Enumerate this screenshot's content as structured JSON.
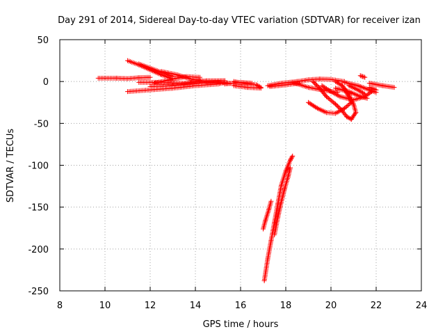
{
  "chart_data": {
    "type": "scatter",
    "title": "Day 291 of 2014, Sidereal Day-to-day VTEC variation (SDTVAR) for receiver izan",
    "xlabel": "GPS time / hours",
    "ylabel": "SDTVAR / TECUs",
    "xlim": [
      8,
      24
    ],
    "ylim": [
      -250,
      50
    ],
    "xticks": [
      "8",
      "10",
      "12",
      "14",
      "16",
      "18",
      "20",
      "22",
      "24"
    ],
    "yticks": [
      "50",
      "0",
      "-50",
      "-100",
      "-150",
      "-200",
      "-250"
    ],
    "grid": true,
    "marker": "+",
    "series": [
      {
        "name": "SDTVAR",
        "color": "#ff0000",
        "segments": [
          [
            [
              9.7,
              4
            ],
            [
              10.5,
              4
            ],
            [
              11.0,
              3.5
            ],
            [
              11.5,
              4.5
            ],
            [
              12.0,
              5
            ]
          ],
          [
            [
              11.0,
              -12
            ],
            [
              12.0,
              -10
            ],
            [
              13.0,
              -8
            ],
            [
              14.0,
              -5
            ],
            [
              15.0,
              -3
            ],
            [
              15.3,
              -1
            ]
          ],
          [
            [
              11.0,
              25
            ],
            [
              11.5,
              20
            ],
            [
              12.0,
              14
            ],
            [
              12.5,
              8
            ],
            [
              13.0,
              3
            ]
          ],
          [
            [
              11.5,
              21
            ],
            [
              12.0,
              16
            ],
            [
              12.5,
              11
            ],
            [
              13.0,
              6
            ]
          ],
          [
            [
              12.2,
              -2
            ],
            [
              13.0,
              3
            ],
            [
              13.6,
              6
            ],
            [
              14.2,
              5
            ]
          ],
          [
            [
              11.5,
              -1
            ],
            [
              12.5,
              -1
            ],
            [
              13.5,
              -2
            ],
            [
              14.5,
              1
            ],
            [
              15.3,
              1
            ]
          ],
          [
            [
              12.0,
              -6
            ],
            [
              13.0,
              -5
            ],
            [
              14.0,
              -2
            ],
            [
              15.0,
              -1
            ],
            [
              15.5,
              -2
            ]
          ],
          [
            [
              12.5,
              12
            ],
            [
              13.2,
              8
            ],
            [
              13.8,
              3
            ],
            [
              14.5,
              0
            ],
            [
              15.3,
              1
            ]
          ],
          [
            [
              15.3,
              -3
            ],
            [
              16.0,
              -1
            ],
            [
              16.5,
              -2
            ]
          ],
          [
            [
              15.7,
              0
            ],
            [
              16.3,
              -3
            ],
            [
              16.7,
              -4
            ],
            [
              16.9,
              -7
            ]
          ],
          [
            [
              15.7,
              -5
            ],
            [
              16.3,
              -7
            ],
            [
              16.9,
              -8
            ]
          ],
          [
            [
              17.2,
              -5
            ],
            [
              17.8,
              -2
            ],
            [
              18.5,
              0
            ],
            [
              19.0,
              2
            ],
            [
              19.5,
              3
            ],
            [
              20.0,
              2.5
            ],
            [
              20.6,
              0
            ]
          ],
          [
            [
              17.3,
              -6
            ],
            [
              18.0,
              -4
            ],
            [
              18.6,
              -2
            ]
          ],
          [
            [
              18.3,
              -1
            ],
            [
              19.0,
              -7
            ],
            [
              19.6,
              -10
            ],
            [
              20.3,
              -13
            ]
          ],
          [
            [
              19.2,
              0
            ],
            [
              19.5,
              -8
            ],
            [
              19.8,
              -18
            ],
            [
              20.2,
              -27
            ],
            [
              20.5,
              -35
            ],
            [
              20.7,
              -42
            ],
            [
              20.9,
              -45
            ],
            [
              21.1,
              -37
            ],
            [
              21.0,
              -27
            ],
            [
              20.8,
              -18
            ],
            [
              20.6,
              -10
            ]
          ],
          [
            [
              19.0,
              -25
            ],
            [
              19.4,
              -32
            ],
            [
              19.8,
              -37
            ],
            [
              20.2,
              -38
            ],
            [
              20.6,
              -32
            ],
            [
              20.9,
              -25
            ],
            [
              20.8,
              -15
            ],
            [
              20.5,
              -5
            ],
            [
              20.2,
              0
            ]
          ],
          [
            [
              19.6,
              -5
            ],
            [
              20.0,
              -12
            ],
            [
              20.4,
              -18
            ],
            [
              21.0,
              -22
            ],
            [
              21.5,
              -18
            ],
            [
              21.8,
              -12
            ]
          ],
          [
            [
              20.2,
              -8
            ],
            [
              20.8,
              -12
            ],
            [
              21.3,
              -18
            ],
            [
              21.6,
              -20
            ]
          ],
          [
            [
              20.8,
              -5
            ],
            [
              21.2,
              -10
            ],
            [
              21.5,
              -15
            ]
          ],
          [
            [
              20.6,
              -1
            ],
            [
              21.2,
              -5
            ],
            [
              21.6,
              -9
            ],
            [
              22.0,
              -13
            ]
          ],
          [
            [
              21.3,
              7
            ],
            [
              21.5,
              5
            ]
          ],
          [
            [
              21.7,
              -2
            ],
            [
              22.3,
              -5
            ],
            [
              22.8,
              -7
            ]
          ],
          [
            [
              21.7,
              -7
            ],
            [
              22.0,
              -10
            ]
          ],
          [
            [
              17.0,
              -176
            ],
            [
              17.1,
              -166
            ],
            [
              17.25,
              -153
            ],
            [
              17.35,
              -143
            ]
          ],
          [
            [
              17.05,
              -238
            ],
            [
              17.2,
              -212
            ],
            [
              17.35,
              -190
            ],
            [
              17.5,
              -168
            ],
            [
              17.65,
              -146
            ],
            [
              17.8,
              -124
            ],
            [
              18.0,
              -107
            ],
            [
              18.2,
              -94
            ],
            [
              18.3,
              -89
            ]
          ],
          [
            [
              17.5,
              -183
            ],
            [
              17.65,
              -162
            ],
            [
              17.8,
              -144
            ],
            [
              17.95,
              -128
            ],
            [
              18.1,
              -114
            ],
            [
              18.2,
              -103
            ]
          ]
        ]
      }
    ]
  }
}
